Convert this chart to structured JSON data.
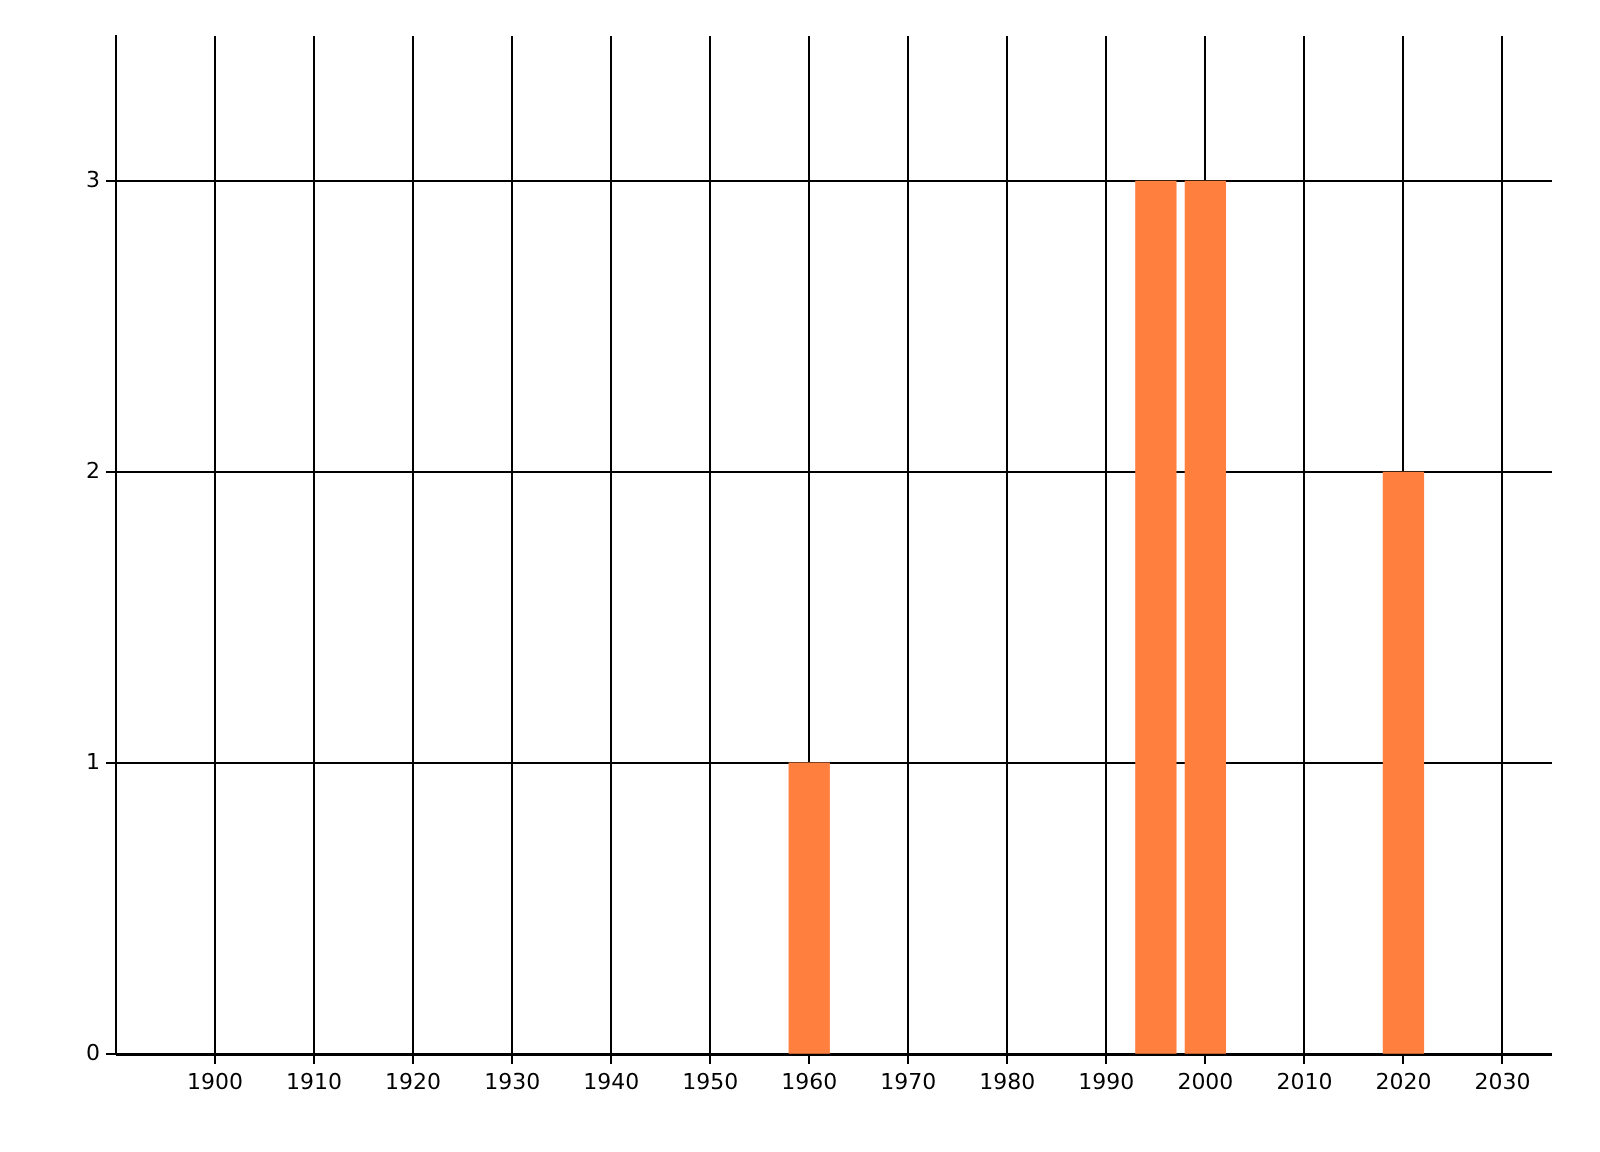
{
  "chart_data": {
    "type": "bar",
    "x": [
      1960,
      1995,
      2000,
      2020
    ],
    "values": [
      1,
      3,
      3,
      2
    ],
    "color": "#ff7f3f",
    "xlim": [
      1890,
      2035
    ],
    "xticks": [
      1900,
      1910,
      1920,
      1930,
      1940,
      1950,
      1960,
      1970,
      1980,
      1990,
      2000,
      2010,
      2020,
      2030
    ],
    "ylim": [
      0,
      3.5
    ],
    "yticks": [
      0,
      1,
      2,
      3
    ],
    "grid": true,
    "legend": false
  }
}
